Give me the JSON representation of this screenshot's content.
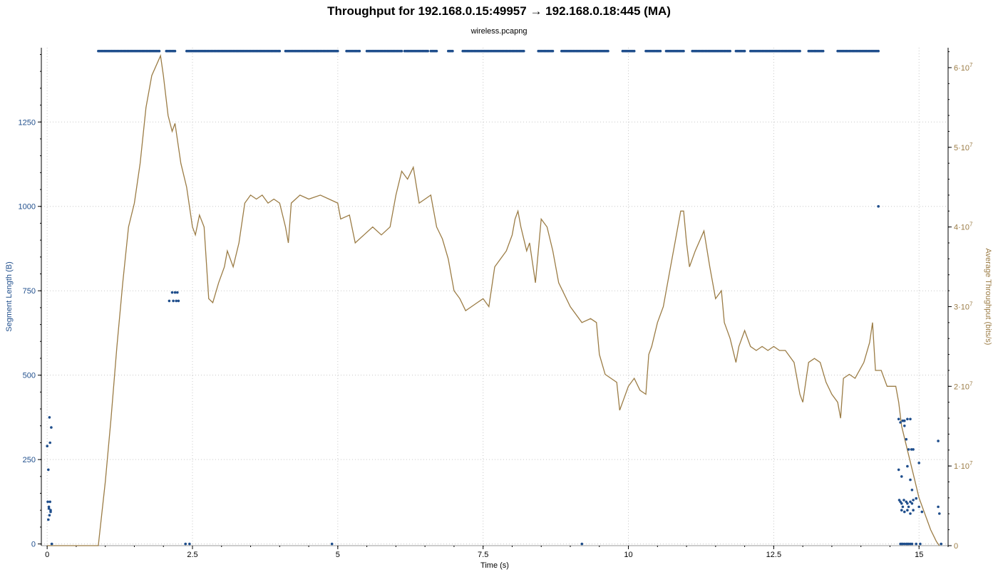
{
  "title": "Throughput for 192.168.0.15:49957 → 192.168.0.18:445 (MA)",
  "subtitle": "wireless.pcapng",
  "colors": {
    "segment": "#1f4e8c",
    "throughput": "#9b7c45",
    "grid": "#c8c8c8",
    "axis": "#000000"
  },
  "chart_data": {
    "type": "scatter",
    "grid": true,
    "xlabel": "Time (s)",
    "ylabel_left": "Segment Length (B)",
    "ylabel_right": "Average Throughput (bits/s)",
    "xlim": [
      -0.1,
      15.5
    ],
    "ylim_left": [
      -5,
      1470
    ],
    "ylim_right": [
      0,
      62500000.0
    ],
    "x_ticks": [
      0,
      2.5,
      5,
      7.5,
      10,
      12.5,
      15
    ],
    "x_tick_labels": [
      "0",
      "2.5",
      "5",
      "7.5",
      "10",
      "12.5",
      "15"
    ],
    "y_left_ticks": [
      0,
      250,
      500,
      750,
      1000,
      1250
    ],
    "y_left_tick_labels": [
      "0",
      "250",
      "500",
      "750",
      "1000",
      "1250"
    ],
    "y_right_ticks": [
      0,
      10000000.0,
      20000000.0,
      30000000.0,
      40000000.0,
      50000000.0,
      60000000.0
    ],
    "y_right_tick_labels": [
      {
        "m": "0",
        "e": ""
      },
      {
        "m": "1·10",
        "e": "7"
      },
      {
        "m": "2·10",
        "e": "7"
      },
      {
        "m": "3·10",
        "e": "7"
      },
      {
        "m": "4·10",
        "e": "7"
      },
      {
        "m": "5·10",
        "e": "7"
      },
      {
        "m": "6·10",
        "e": "7"
      }
    ],
    "series": [
      {
        "name": "Segment Length",
        "kind": "scatter",
        "axis": "left",
        "full_segment_value": 1460,
        "full_segment_ranges": [
          [
            0.88,
            1.95
          ],
          [
            2.05,
            2.22
          ],
          [
            2.4,
            4.0
          ],
          [
            4.1,
            5.0
          ],
          [
            5.15,
            5.38
          ],
          [
            5.5,
            6.1
          ],
          [
            6.15,
            6.55
          ],
          [
            6.6,
            6.7
          ],
          [
            6.9,
            6.98
          ],
          [
            7.15,
            8.2
          ],
          [
            8.45,
            8.7
          ],
          [
            8.85,
            9.65
          ],
          [
            9.9,
            10.1
          ],
          [
            10.3,
            10.55
          ],
          [
            10.65,
            10.95
          ],
          [
            11.1,
            11.75
          ],
          [
            11.85,
            12.0
          ],
          [
            12.1,
            12.95
          ],
          [
            13.1,
            13.35
          ],
          [
            13.6,
            14.3
          ]
        ],
        "points": [
          [
            0.0,
            290
          ],
          [
            0.02,
            220
          ],
          [
            0.04,
            375
          ],
          [
            0.05,
            300
          ],
          [
            0.07,
            345
          ],
          [
            0.01,
            125
          ],
          [
            0.03,
            110
          ],
          [
            0.05,
            125
          ],
          [
            0.06,
            95
          ],
          [
            0.03,
            105
          ],
          [
            0.04,
            85
          ],
          [
            0.02,
            72
          ],
          [
            0.06,
            100
          ],
          [
            0.08,
            0
          ],
          [
            2.1,
            720
          ],
          [
            2.15,
            745
          ],
          [
            2.17,
            720
          ],
          [
            2.2,
            745
          ],
          [
            2.22,
            720
          ],
          [
            2.24,
            745
          ],
          [
            2.26,
            720
          ],
          [
            2.38,
            0
          ],
          [
            2.45,
            0
          ],
          [
            4.9,
            0
          ],
          [
            9.2,
            0
          ],
          [
            14.3,
            1000
          ],
          [
            14.65,
            370
          ],
          [
            14.68,
            360
          ],
          [
            14.72,
            365
          ],
          [
            14.75,
            365
          ],
          [
            14.8,
            370
          ],
          [
            14.85,
            370
          ],
          [
            14.75,
            350
          ],
          [
            14.78,
            310
          ],
          [
            14.82,
            280
          ],
          [
            14.87,
            280
          ],
          [
            14.9,
            280
          ],
          [
            14.65,
            220
          ],
          [
            14.7,
            200
          ],
          [
            14.8,
            230
          ],
          [
            14.85,
            190
          ],
          [
            14.66,
            130
          ],
          [
            14.68,
            125
          ],
          [
            14.7,
            120
          ],
          [
            14.72,
            110
          ],
          [
            14.74,
            130
          ],
          [
            14.78,
            125
          ],
          [
            14.8,
            120
          ],
          [
            14.82,
            110
          ],
          [
            14.85,
            125
          ],
          [
            14.88,
            120
          ],
          [
            14.9,
            130
          ],
          [
            14.95,
            135
          ],
          [
            14.7,
            100
          ],
          [
            14.75,
            95
          ],
          [
            14.8,
            100
          ],
          [
            14.85,
            90
          ],
          [
            14.9,
            100
          ],
          [
            15.0,
            110
          ],
          [
            15.05,
            95
          ],
          [
            14.88,
            160
          ],
          [
            15.0,
            240
          ],
          [
            14.68,
            0
          ],
          [
            14.7,
            0
          ],
          [
            14.72,
            0
          ],
          [
            14.75,
            0
          ],
          [
            14.78,
            0
          ],
          [
            14.8,
            0
          ],
          [
            14.82,
            0
          ],
          [
            14.85,
            0
          ],
          [
            14.88,
            0
          ],
          [
            14.95,
            0
          ],
          [
            15.02,
            0
          ],
          [
            15.33,
            305
          ],
          [
            15.33,
            110
          ],
          [
            15.35,
            90
          ],
          [
            15.38,
            0
          ]
        ]
      },
      {
        "name": "Average Throughput",
        "kind": "line",
        "axis": "right",
        "points": [
          [
            0.0,
            0
          ],
          [
            0.88,
            0
          ],
          [
            1.0,
            8000000.0
          ],
          [
            1.1,
            16000000.0
          ],
          [
            1.2,
            25000000.0
          ],
          [
            1.3,
            33000000.0
          ],
          [
            1.4,
            40000000.0
          ],
          [
            1.5,
            43000000.0
          ],
          [
            1.6,
            48000000.0
          ],
          [
            1.7,
            55000000.0
          ],
          [
            1.8,
            59000000.0
          ],
          [
            1.95,
            61500000.0
          ],
          [
            2.0,
            59000000.0
          ],
          [
            2.08,
            54000000.0
          ],
          [
            2.15,
            52000000.0
          ],
          [
            2.2,
            53000000.0
          ],
          [
            2.3,
            48000000.0
          ],
          [
            2.4,
            45000000.0
          ],
          [
            2.5,
            40000000.0
          ],
          [
            2.55,
            39000000.0
          ],
          [
            2.62,
            41500000.0
          ],
          [
            2.7,
            40000000.0
          ],
          [
            2.78,
            31000000.0
          ],
          [
            2.85,
            30500000.0
          ],
          [
            2.95,
            33000000.0
          ],
          [
            3.05,
            35000000.0
          ],
          [
            3.1,
            37000000.0
          ],
          [
            3.2,
            35000000.0
          ],
          [
            3.3,
            38000000.0
          ],
          [
            3.4,
            43000000.0
          ],
          [
            3.5,
            44000000.0
          ],
          [
            3.6,
            43500000.0
          ],
          [
            3.7,
            44000000.0
          ],
          [
            3.8,
            43000000.0
          ],
          [
            3.9,
            43500000.0
          ],
          [
            4.0,
            43000000.0
          ],
          [
            4.1,
            40000000.0
          ],
          [
            4.15,
            38000000.0
          ],
          [
            4.2,
            43000000.0
          ],
          [
            4.35,
            44000000.0
          ],
          [
            4.5,
            43500000.0
          ],
          [
            4.7,
            44000000.0
          ],
          [
            4.85,
            43500000.0
          ],
          [
            5.0,
            43000000.0
          ],
          [
            5.05,
            41000000.0
          ],
          [
            5.2,
            41500000.0
          ],
          [
            5.3,
            38000000.0
          ],
          [
            5.45,
            39000000.0
          ],
          [
            5.6,
            40000000.0
          ],
          [
            5.75,
            39000000.0
          ],
          [
            5.9,
            40000000.0
          ],
          [
            6.0,
            44000000.0
          ],
          [
            6.1,
            47000000.0
          ],
          [
            6.2,
            46000000.0
          ],
          [
            6.3,
            47500000.0
          ],
          [
            6.4,
            43000000.0
          ],
          [
            6.5,
            43500000.0
          ],
          [
            6.6,
            44000000.0
          ],
          [
            6.7,
            40000000.0
          ],
          [
            6.8,
            38500000.0
          ],
          [
            6.9,
            36000000.0
          ],
          [
            7.0,
            32000000.0
          ],
          [
            7.1,
            31000000.0
          ],
          [
            7.2,
            29500000.0
          ],
          [
            7.3,
            30000000.0
          ],
          [
            7.4,
            30500000.0
          ],
          [
            7.5,
            31000000.0
          ],
          [
            7.6,
            30000000.0
          ],
          [
            7.7,
            35000000.0
          ],
          [
            7.8,
            36000000.0
          ],
          [
            7.9,
            37000000.0
          ],
          [
            8.0,
            39000000.0
          ],
          [
            8.05,
            41000000.0
          ],
          [
            8.1,
            42000000.0
          ],
          [
            8.15,
            40000000.0
          ],
          [
            8.25,
            37000000.0
          ],
          [
            8.3,
            38000000.0
          ],
          [
            8.4,
            33000000.0
          ],
          [
            8.5,
            41000000.0
          ],
          [
            8.6,
            40000000.0
          ],
          [
            8.7,
            37000000.0
          ],
          [
            8.8,
            33000000.0
          ],
          [
            9.0,
            30000000.0
          ],
          [
            9.2,
            28000000.0
          ],
          [
            9.35,
            28500000.0
          ],
          [
            9.45,
            28000000.0
          ],
          [
            9.5,
            24000000.0
          ],
          [
            9.6,
            21500000.0
          ],
          [
            9.8,
            20500000.0
          ],
          [
            9.85,
            17000000.0
          ],
          [
            9.9,
            18000000.0
          ],
          [
            10.0,
            20000000.0
          ],
          [
            10.1,
            21000000.0
          ],
          [
            10.2,
            19500000.0
          ],
          [
            10.3,
            19000000.0
          ],
          [
            10.35,
            24000000.0
          ],
          [
            10.4,
            25000000.0
          ],
          [
            10.5,
            28000000.0
          ],
          [
            10.6,
            30000000.0
          ],
          [
            10.7,
            34000000.0
          ],
          [
            10.8,
            38000000.0
          ],
          [
            10.9,
            42000000.0
          ],
          [
            10.95,
            42000000.0
          ],
          [
            11.0,
            38000000.0
          ],
          [
            11.05,
            35000000.0
          ],
          [
            11.15,
            37000000.0
          ],
          [
            11.3,
            39500000.0
          ],
          [
            11.4,
            35000000.0
          ],
          [
            11.5,
            31000000.0
          ],
          [
            11.6,
            32000000.0
          ],
          [
            11.65,
            28000000.0
          ],
          [
            11.75,
            26000000.0
          ],
          [
            11.85,
            23000000.0
          ],
          [
            11.9,
            25000000.0
          ],
          [
            12.0,
            27000000.0
          ],
          [
            12.1,
            25000000.0
          ],
          [
            12.2,
            24500000.0
          ],
          [
            12.3,
            25000000.0
          ],
          [
            12.4,
            24500000.0
          ],
          [
            12.5,
            25000000.0
          ],
          [
            12.6,
            24500000.0
          ],
          [
            12.7,
            24500000.0
          ],
          [
            12.85,
            23000000.0
          ],
          [
            12.95,
            19000000.0
          ],
          [
            13.0,
            18000000.0
          ],
          [
            13.1,
            23000000.0
          ],
          [
            13.2,
            23500000.0
          ],
          [
            13.3,
            23000000.0
          ],
          [
            13.4,
            20500000.0
          ],
          [
            13.5,
            19000000.0
          ],
          [
            13.6,
            18000000.0
          ],
          [
            13.65,
            16000000.0
          ],
          [
            13.7,
            21000000.0
          ],
          [
            13.8,
            21500000.0
          ],
          [
            13.9,
            21000000.0
          ],
          [
            14.05,
            23000000.0
          ],
          [
            14.15,
            25500000.0
          ],
          [
            14.2,
            28000000.0
          ],
          [
            14.25,
            22000000.0
          ],
          [
            14.35,
            22000000.0
          ],
          [
            14.45,
            20000000.0
          ],
          [
            14.55,
            20000000.0
          ],
          [
            14.6,
            20000000.0
          ],
          [
            14.65,
            18000000.0
          ],
          [
            14.7,
            15000000.0
          ],
          [
            14.8,
            12000000.0
          ],
          [
            14.9,
            9000000.0
          ],
          [
            15.0,
            6000000.0
          ],
          [
            15.1,
            4000000.0
          ],
          [
            15.2,
            2000000.0
          ],
          [
            15.3,
            500000.0
          ],
          [
            15.35,
            0
          ]
        ]
      }
    ]
  }
}
